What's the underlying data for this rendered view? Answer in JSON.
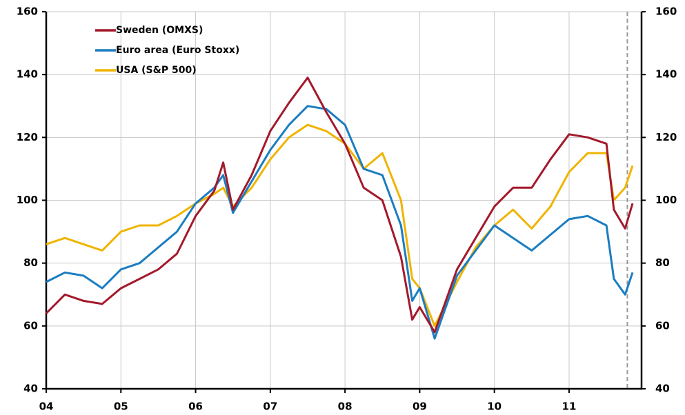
{
  "chart_data": {
    "type": "line",
    "x": [
      4,
      4.25,
      4.5,
      4.75,
      5,
      5.25,
      5.5,
      5.75,
      6,
      6.25,
      6.37,
      6.5,
      6.75,
      7,
      7.25,
      7.5,
      7.75,
      8,
      8.25,
      8.5,
      8.75,
      8.9,
      9,
      9.2,
      9.5,
      9.75,
      10,
      10.25,
      10.5,
      10.75,
      11,
      11.25,
      11.5,
      11.6,
      11.75,
      11.85
    ],
    "series": [
      {
        "name": "Sweden (OMXS)",
        "color": "#a3192b",
        "values": [
          64,
          70,
          68,
          67,
          72,
          75,
          78,
          83,
          95,
          103,
          112,
          97,
          108,
          122,
          131,
          139,
          128,
          118,
          104,
          100,
          82,
          62,
          66,
          58,
          78,
          88,
          98,
          104,
          104,
          113,
          121,
          120,
          118,
          97,
          91,
          99
        ]
      },
      {
        "name": "Euro area (Euro Stoxx)",
        "color": "#1a7dc1",
        "values": [
          74,
          77,
          76,
          72,
          78,
          80,
          85,
          90,
          99,
          104,
          108,
          96,
          106,
          116,
          124,
          130,
          129,
          124,
          110,
          108,
          92,
          68,
          72,
          56,
          76,
          84,
          92,
          88,
          84,
          89,
          94,
          95,
          92,
          75,
          70,
          77
        ]
      },
      {
        "name": "USA (S&P 500)",
        "color": "#f0b400",
        "values": [
          86,
          88,
          86,
          84,
          90,
          92,
          92,
          95,
          99,
          102,
          104,
          98,
          104,
          113,
          120,
          124,
          122,
          118,
          110,
          115,
          100,
          75,
          72,
          60,
          74,
          85,
          92,
          97,
          91,
          98,
          109,
          115,
          115,
          100,
          104,
          111
        ]
      }
    ],
    "xlim": [
      4,
      11.97
    ],
    "xticks": [
      {
        "value": 4,
        "label": "04"
      },
      {
        "value": 5,
        "label": "05"
      },
      {
        "value": 6,
        "label": "06"
      },
      {
        "value": 7,
        "label": "07"
      },
      {
        "value": 8,
        "label": "08"
      },
      {
        "value": 9,
        "label": "09"
      },
      {
        "value": 10,
        "label": "10"
      },
      {
        "value": 11,
        "label": "11"
      }
    ],
    "ylim": [
      40,
      160
    ],
    "yticks": [
      40,
      60,
      80,
      100,
      120,
      140,
      160
    ],
    "y2lim": [
      40,
      160
    ],
    "y2ticks": [
      40,
      60,
      80,
      100,
      120,
      140,
      160
    ],
    "vline": 11.78,
    "grid": true
  }
}
